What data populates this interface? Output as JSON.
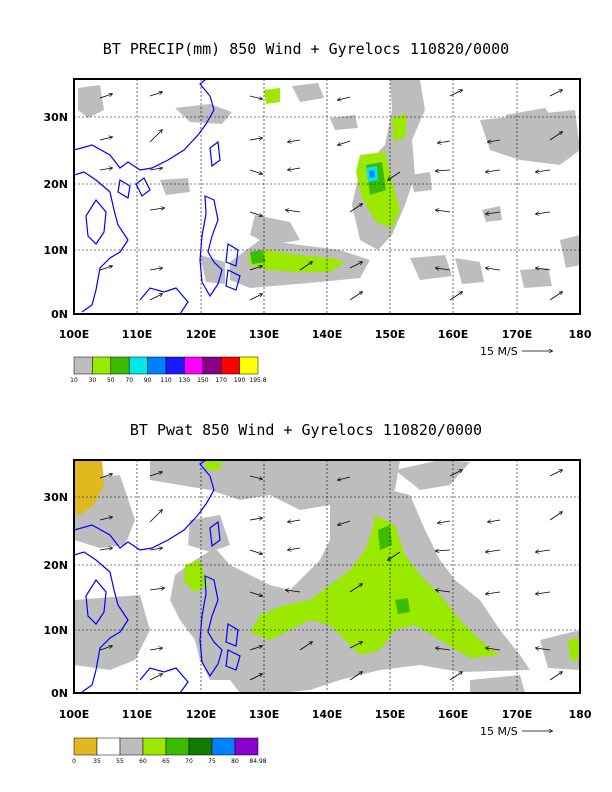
{
  "panels": [
    {
      "title": "BT PRECIP(mm) 850 Wind + Gyrelocs 110820/0000",
      "x_ticks": [
        "100E",
        "110E",
        "120E",
        "130E",
        "140E",
        "150E",
        "160E",
        "170E",
        "180"
      ],
      "y_ticks": [
        "0N",
        "10N",
        "20N",
        "30N"
      ],
      "scale_label": "15 M/S",
      "legend": {
        "colors": [
          "#bdbdbd",
          "#9be800",
          "#3cbc00",
          "#00e8e8",
          "#0080ff",
          "#1a1aff",
          "#ff00ff",
          "#880088",
          "#ff0000",
          "#ffff00"
        ],
        "labels": [
          "10",
          "30",
          "50",
          "70",
          "90",
          "110",
          "130",
          "150",
          "170",
          "190",
          "195.8"
        ]
      }
    },
    {
      "title": "BT Pwat 850 Wind + Gyrelocs 110820/0000",
      "x_ticks": [
        "100E",
        "110E",
        "120E",
        "130E",
        "140E",
        "150E",
        "160E",
        "170E",
        "180"
      ],
      "y_ticks": [
        "0N",
        "10N",
        "20N",
        "30N"
      ],
      "scale_label": "15 M/S",
      "legend": {
        "colors": [
          "#e0b820",
          "#ffffff",
          "#bdbdbd",
          "#9be800",
          "#3cbc00",
          "#137a00",
          "#0080ff",
          "#8a00cc"
        ],
        "labels": [
          "0",
          "35",
          "55",
          "60",
          "65",
          "70",
          "75",
          "80",
          "84.98"
        ]
      }
    }
  ],
  "colors": {
    "coastline": "#0000ff",
    "frame": "#000000",
    "grid": "#000000"
  }
}
